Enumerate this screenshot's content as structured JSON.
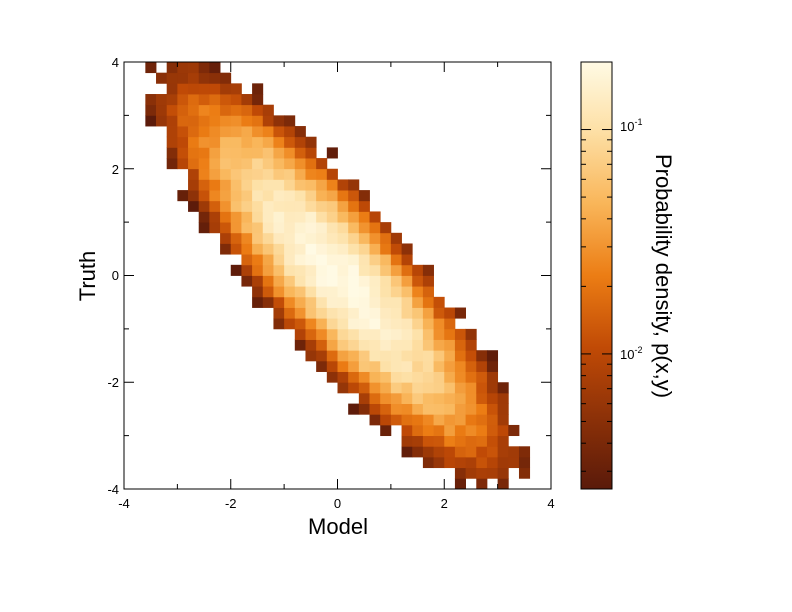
{
  "chart_data": {
    "type": "heatmap",
    "title": "",
    "xlabel": "Model",
    "ylabel": "Truth",
    "xlim": [
      -4,
      4
    ],
    "ylim": [
      -4,
      4
    ],
    "xticks": [
      "-4",
      "-2",
      "0",
      "2",
      "4"
    ],
    "yticks": [
      "-4",
      "-2",
      "0",
      "2",
      "4"
    ],
    "grid": false,
    "bins_per_axis": 40,
    "colorbar": {
      "label": "Probability density, p(x,y)",
      "scale": "log",
      "range": [
        0.0025,
        0.2
      ],
      "ticks": [
        {
          "value": 0.01,
          "base": "10",
          "exponent": "-2"
        },
        {
          "value": 0.1,
          "base": "10",
          "exponent": "-1"
        }
      ],
      "colormap": [
        "#5a1a0a",
        "#8a3008",
        "#c04a06",
        "#ec7d14",
        "#f9b65a",
        "#fde0a6",
        "#fffae4"
      ]
    },
    "distribution": {
      "description_of_values": "bivariate density of Model (x) vs Truth (y)",
      "mean_x": 0,
      "mean_y": 0,
      "std_x": 1.25,
      "std_y": 1.45,
      "correlation": -0.86,
      "peak_density": 0.2,
      "min_plotted_density": 0.0025
    }
  }
}
